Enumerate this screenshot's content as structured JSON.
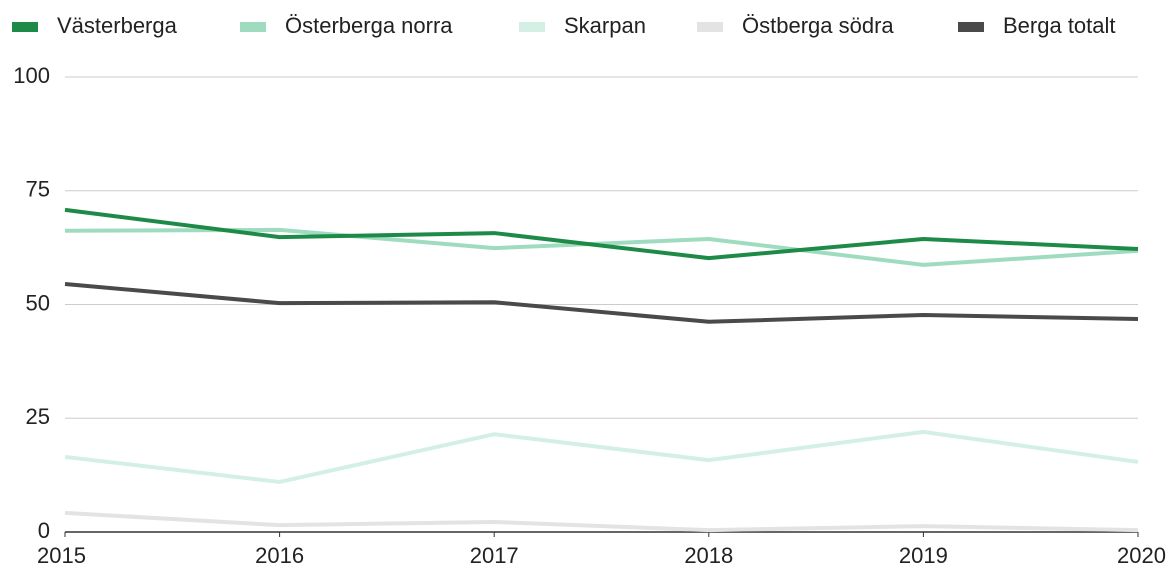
{
  "chart_data": {
    "type": "line",
    "x": [
      2015,
      2016,
      2017,
      2018,
      2019,
      2020
    ],
    "xlim": [
      2015,
      2020
    ],
    "xticks": [
      2015,
      2016,
      2017,
      2018,
      2019,
      2020
    ],
    "ylim": [
      0,
      100
    ],
    "yticks": [
      0,
      25,
      50,
      75,
      100
    ],
    "grid": true,
    "legend": "top",
    "series": [
      {
        "name": "Västerberga",
        "color": "#1e8a47",
        "values": [
          70.8,
          64.8,
          65.7,
          60.2,
          64.4,
          62.2
        ]
      },
      {
        "name": "Österberga norra",
        "color": "#9fdcbf",
        "values": [
          66.2,
          66.4,
          62.4,
          64.4,
          58.7,
          61.8
        ]
      },
      {
        "name": "Skarpan",
        "color": "#d4f0e4",
        "values": [
          16.5,
          11,
          21.5,
          15.8,
          22,
          15.4
        ]
      },
      {
        "name": "Östberga södra",
        "color": "#e3e3e3",
        "values": [
          4.2,
          1.5,
          2.2,
          0.4,
          1.3,
          0.4
        ]
      },
      {
        "name": "Berga totalt",
        "color": "#4a4a4a",
        "values": [
          54.5,
          50.3,
          50.5,
          46.2,
          47.7,
          46.8
        ]
      }
    ]
  }
}
